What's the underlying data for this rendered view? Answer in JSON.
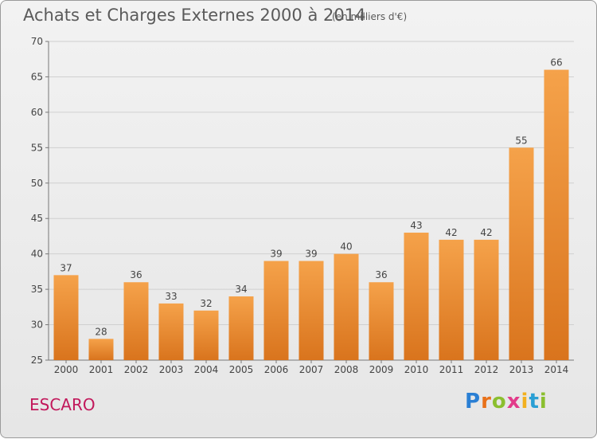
{
  "title": "Achats et Charges Externes 2000 à 2014",
  "unit": "(en milliers d'€)",
  "place": "ESCARO",
  "logo": {
    "letters": [
      "P",
      "r",
      "o",
      "x",
      "i",
      "t",
      "i"
    ],
    "colors": [
      "#2a7fd4",
      "#e8711a",
      "#8bbf2f",
      "#e23b8a",
      "#f2b01e",
      "#2a9fd4",
      "#8bbf2f"
    ]
  },
  "colors": {
    "bar_top": "#f5a24a",
    "bar_bottom": "#d9741d",
    "grid": "#d0d0d0",
    "axis_text": "#444444",
    "place": "#c2185b"
  },
  "chart_data": {
    "type": "bar",
    "categories": [
      "2000",
      "2001",
      "2002",
      "2003",
      "2004",
      "2005",
      "2006",
      "2007",
      "2008",
      "2009",
      "2010",
      "2011",
      "2012",
      "2013",
      "2014"
    ],
    "values": [
      37,
      28,
      36,
      33,
      32,
      34,
      39,
      39,
      40,
      36,
      43,
      42,
      42,
      55,
      66
    ],
    "ylim": [
      25,
      70
    ],
    "yticks": [
      25,
      30,
      35,
      40,
      45,
      50,
      55,
      60,
      65,
      70
    ],
    "grid": true
  }
}
